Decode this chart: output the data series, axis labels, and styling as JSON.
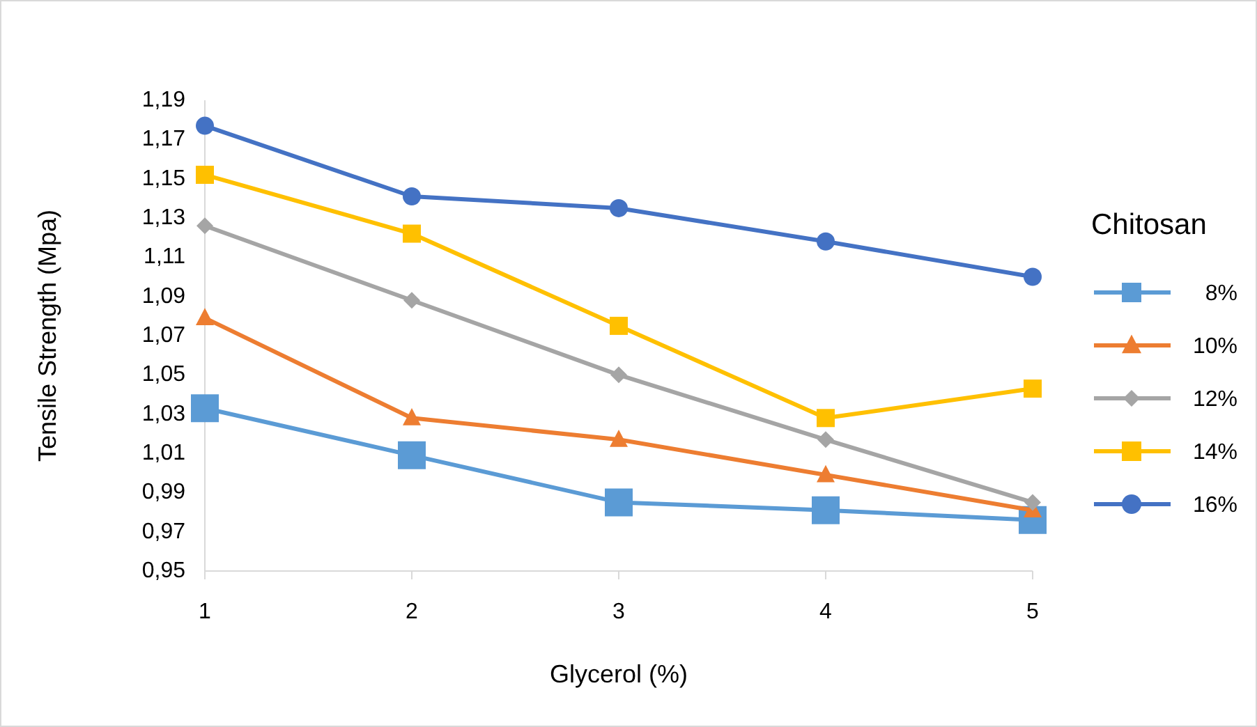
{
  "chart_data": {
    "type": "line",
    "xlabel": "Glycerol (%)",
    "ylabel": "Tensile Strength (Mpa)",
    "legend_title": "Chitosan",
    "categories": [
      "1",
      "2",
      "3",
      "4",
      "5"
    ],
    "ylim": [
      0.95,
      1.19
    ],
    "yticks": [
      {
        "value": 0.95,
        "label": "0,95"
      },
      {
        "value": 0.97,
        "label": "0,97"
      },
      {
        "value": 0.99,
        "label": "0,99"
      },
      {
        "value": 1.01,
        "label": "1,01"
      },
      {
        "value": 1.03,
        "label": "1,03"
      },
      {
        "value": 1.05,
        "label": "1,05"
      },
      {
        "value": 1.07,
        "label": "1,07"
      },
      {
        "value": 1.09,
        "label": "1,09"
      },
      {
        "value": 1.11,
        "label": "1,11"
      },
      {
        "value": 1.13,
        "label": "1,13"
      },
      {
        "value": 1.15,
        "label": "1,15"
      },
      {
        "value": 1.17,
        "label": "1,17"
      },
      {
        "value": 1.19,
        "label": "1,19"
      }
    ],
    "grid": false,
    "legend": "right",
    "line_style": "solid",
    "series": [
      {
        "name": "8%",
        "color": "#5b9bd5",
        "marker": "square",
        "values": [
          1.033,
          1.009,
          0.985,
          0.981,
          0.976
        ]
      },
      {
        "name": "10%",
        "color": "#ed7d31",
        "marker": "triangle",
        "values": [
          1.079,
          1.028,
          1.017,
          0.999,
          0.981
        ]
      },
      {
        "name": "12%",
        "color": "#a5a5a5",
        "marker": "diamond",
        "values": [
          1.126,
          1.088,
          1.05,
          1.017,
          0.985
        ]
      },
      {
        "name": "14%",
        "color": "#ffc000",
        "marker": "square",
        "values": [
          1.152,
          1.122,
          1.075,
          1.028,
          1.043
        ]
      },
      {
        "name": "16%",
        "color": "#4472c4",
        "marker": "circle",
        "values": [
          1.177,
          1.141,
          1.135,
          1.118,
          1.1
        ]
      }
    ]
  }
}
